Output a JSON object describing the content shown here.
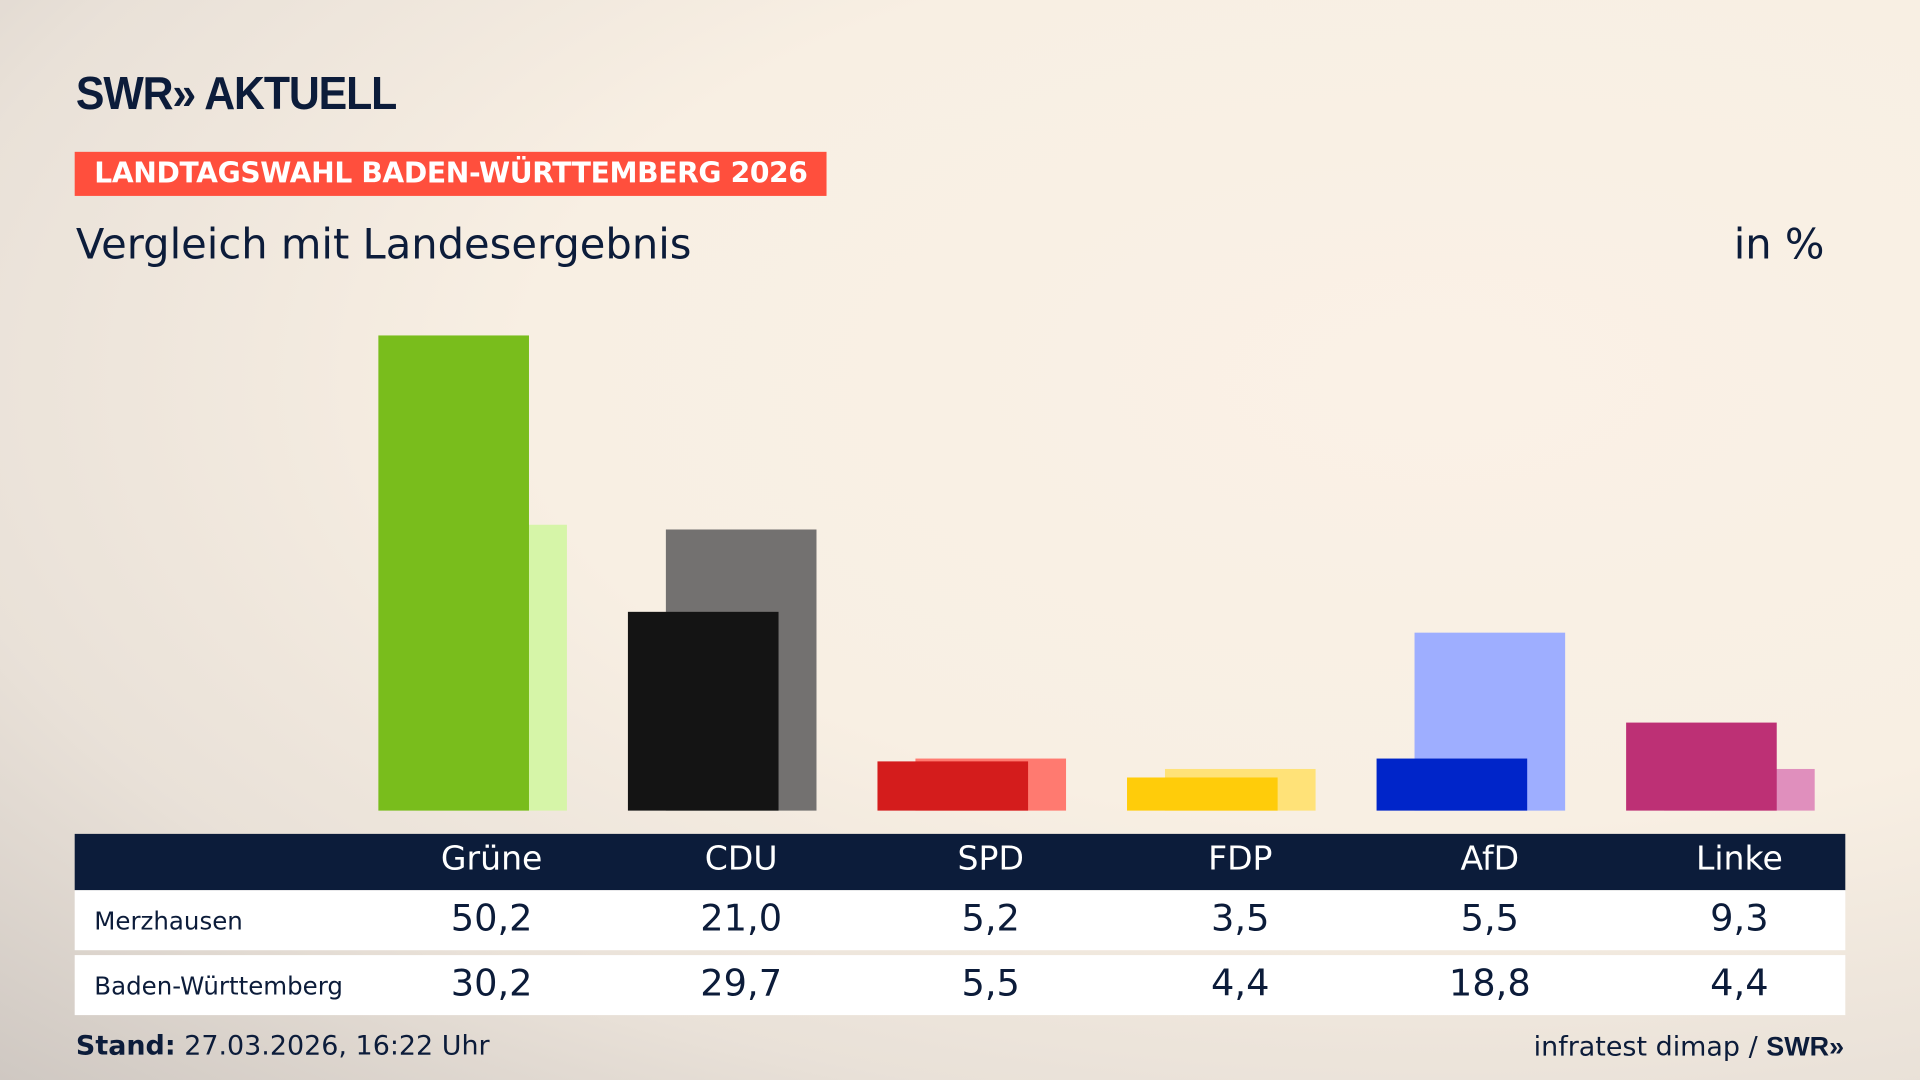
{
  "header": {
    "logo": "SWR» AKTUELL",
    "kicker": "LANDTAGSWAHL BADEN-WÜRTTEMBERG 2026",
    "subtitle": "Vergleich mit Landesergebnis",
    "unit": "in %"
  },
  "footer": {
    "stand_label": "Stand:",
    "stand_value": "27.03.2026, 16:22 Uhr",
    "source": "infratest dimap /",
    "source_logo": "SWR»"
  },
  "chart_data": {
    "type": "bar",
    "categories": [
      "Grüne",
      "CDU",
      "SPD",
      "FDP",
      "AfD",
      "Linke"
    ],
    "series": [
      {
        "name": "Merzhausen",
        "values": [
          50.2,
          21.0,
          5.2,
          3.5,
          5.5,
          9.3
        ],
        "labels": [
          "50,2",
          "21,0",
          "5,2",
          "3,5",
          "5,5",
          "9,3"
        ]
      },
      {
        "name": "Baden-Württemberg",
        "values": [
          30.2,
          29.7,
          5.5,
          4.4,
          18.8,
          4.4
        ],
        "labels": [
          "30,2",
          "29,7",
          "5,5",
          "4,4",
          "18,8",
          "4,4"
        ]
      }
    ],
    "colors": {
      "local": [
        "#79bd1c",
        "#141414",
        "#d41c1c",
        "#ffcc0a",
        "#0025c9",
        "#bd3075"
      ],
      "state": [
        "#d6f5a8",
        "#737170",
        "#ff7a70",
        "#ffe278",
        "#9eaeff",
        "#e08fbd"
      ]
    },
    "ylim": [
      0,
      52
    ],
    "grid": false
  }
}
